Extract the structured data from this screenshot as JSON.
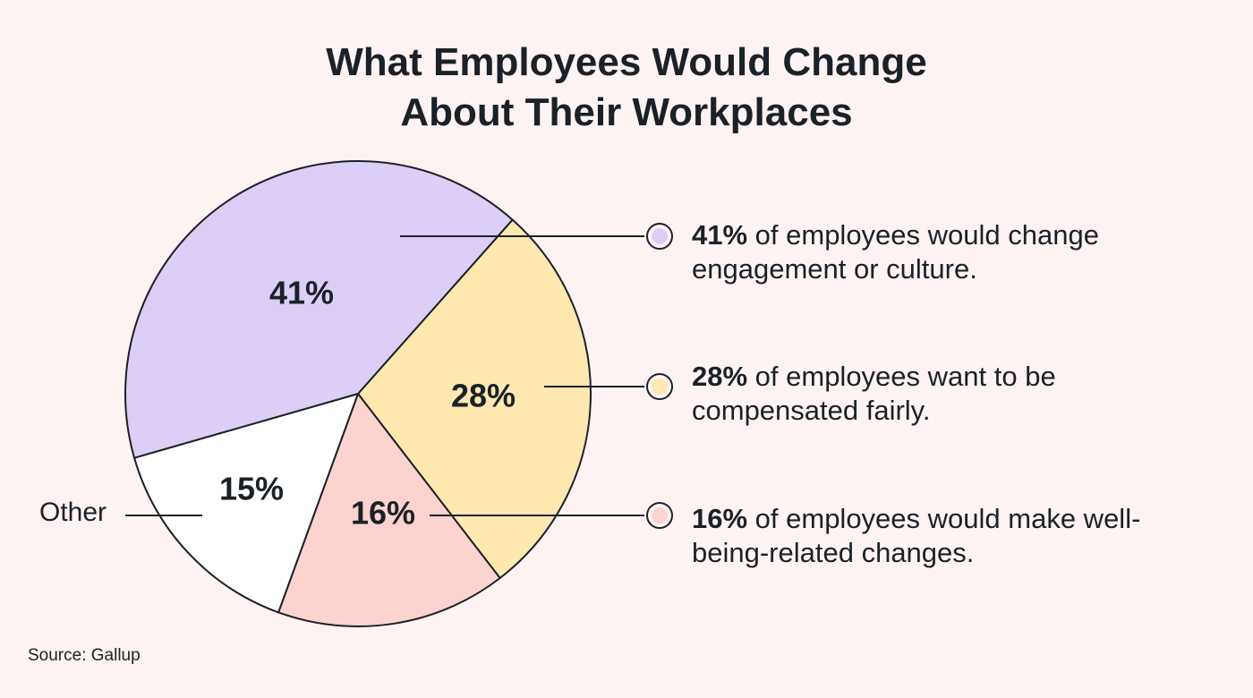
{
  "chart_data": {
    "type": "pie",
    "title": "What Employees Would Change About Their Workplaces",
    "title_lines": [
      "What Employees Would Change",
      "About Their Workplaces"
    ],
    "slices": [
      {
        "name": "Compensation",
        "value": 28,
        "label": "28%",
        "color": "#FEE8B0"
      },
      {
        "name": "Well-being",
        "value": 16,
        "label": "16%",
        "color": "#FDD3CF"
      },
      {
        "name": "Other",
        "value": 15,
        "label": "15%",
        "color": "#FFFFFF"
      },
      {
        "name": "Engagement or culture",
        "value": 41,
        "label": "41%",
        "color": "#DCCEF6"
      }
    ],
    "legend": [
      {
        "bold": "41%",
        "text": " of employees would change engagement or culture.",
        "color": "#DCCEF6"
      },
      {
        "bold": "28%",
        "text": " of employees want to be compensated fairly.",
        "color": "#FEE8B0"
      },
      {
        "bold": "16%",
        "text": " of employees would make well-being-related changes.",
        "color": "#FDD3CF"
      }
    ],
    "other_label": "Other",
    "source": "Source: Gallup"
  }
}
